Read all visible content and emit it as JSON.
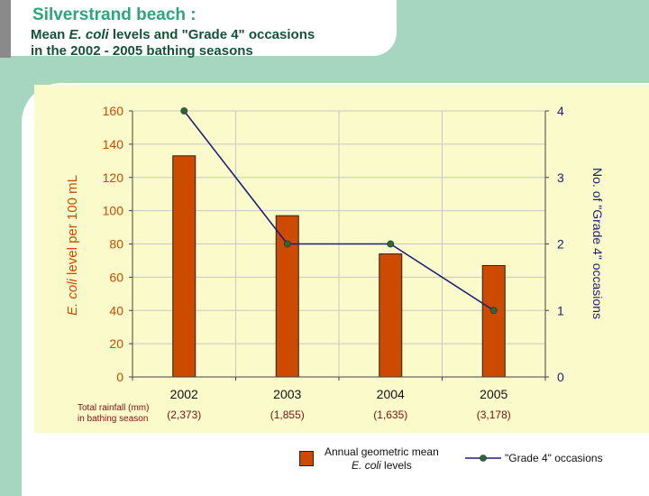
{
  "header": {
    "title": "Silverstrand beach :",
    "subtitle_prefix": "Mean ",
    "subtitle_italic": "E. coli",
    "subtitle_suffix": " levels and \"Grade 4\" occasions",
    "subtitle_line2": "in the 2002 - 2005 bathing seasons"
  },
  "rainfall": {
    "label_line1": "Total rainfall (mm)",
    "label_line2": "in bathing season",
    "values": [
      "(2,373)",
      "(1,855)",
      "(1,635)",
      "(3,178)"
    ]
  },
  "legend": {
    "bar_label_line1": "Annual geometric mean",
    "bar_label_line2_italic": "E. coli",
    "bar_label_line2_suffix": " levels",
    "line_label": "\"Grade 4\" occasions"
  },
  "colors": {
    "bar": "#cc4b00",
    "line": "#1d1d7a",
    "marker": "#2e6b1e",
    "plot_bg": "#fafacb",
    "frame": "#a7d6c0"
  },
  "chart_data": {
    "type": "bar",
    "categories": [
      "2002",
      "2003",
      "2004",
      "2005"
    ],
    "series": [
      {
        "name": "Annual geometric mean E. coli levels",
        "type": "bar",
        "axis": "left",
        "values": [
          133,
          97,
          74,
          67
        ]
      },
      {
        "name": "\"Grade 4\" occasions",
        "type": "line",
        "axis": "right",
        "values": [
          4,
          2,
          2,
          1
        ]
      }
    ],
    "ylabel_italic": "E. coli",
    "ylabel_suffix": " level per 100 mL",
    "ylabel_right": "No. of \"Grade 4\" occasions",
    "ylim": [
      0,
      160
    ],
    "yticks": [
      0,
      20,
      40,
      60,
      80,
      100,
      120,
      140,
      160
    ],
    "ylim_right": [
      0,
      4
    ],
    "yticks_right": [
      0,
      1,
      2,
      3,
      4
    ],
    "grid": true,
    "legend_position": "bottom"
  }
}
